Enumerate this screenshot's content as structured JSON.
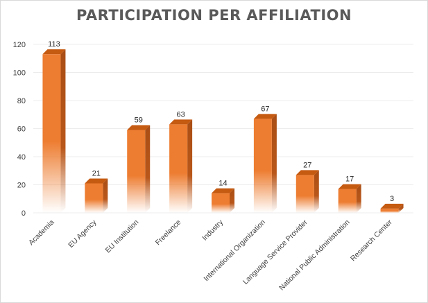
{
  "chart_data": {
    "type": "bar",
    "title": "PARTICIPATION PER AFFILIATION",
    "xlabel": "",
    "ylabel": "",
    "ylim": [
      0,
      120
    ],
    "yticks": [
      0,
      20,
      40,
      60,
      80,
      100,
      120
    ],
    "grid": true,
    "bar_color": "#ED7D31",
    "categories": [
      "Academia",
      "EU Agency",
      "EU Institution",
      "Freelance",
      "Industry",
      "International Organization",
      "Language Service Provider",
      "National Public Administration",
      "Research Center"
    ],
    "values": [
      113,
      21,
      59,
      63,
      14,
      67,
      27,
      17,
      3
    ]
  }
}
